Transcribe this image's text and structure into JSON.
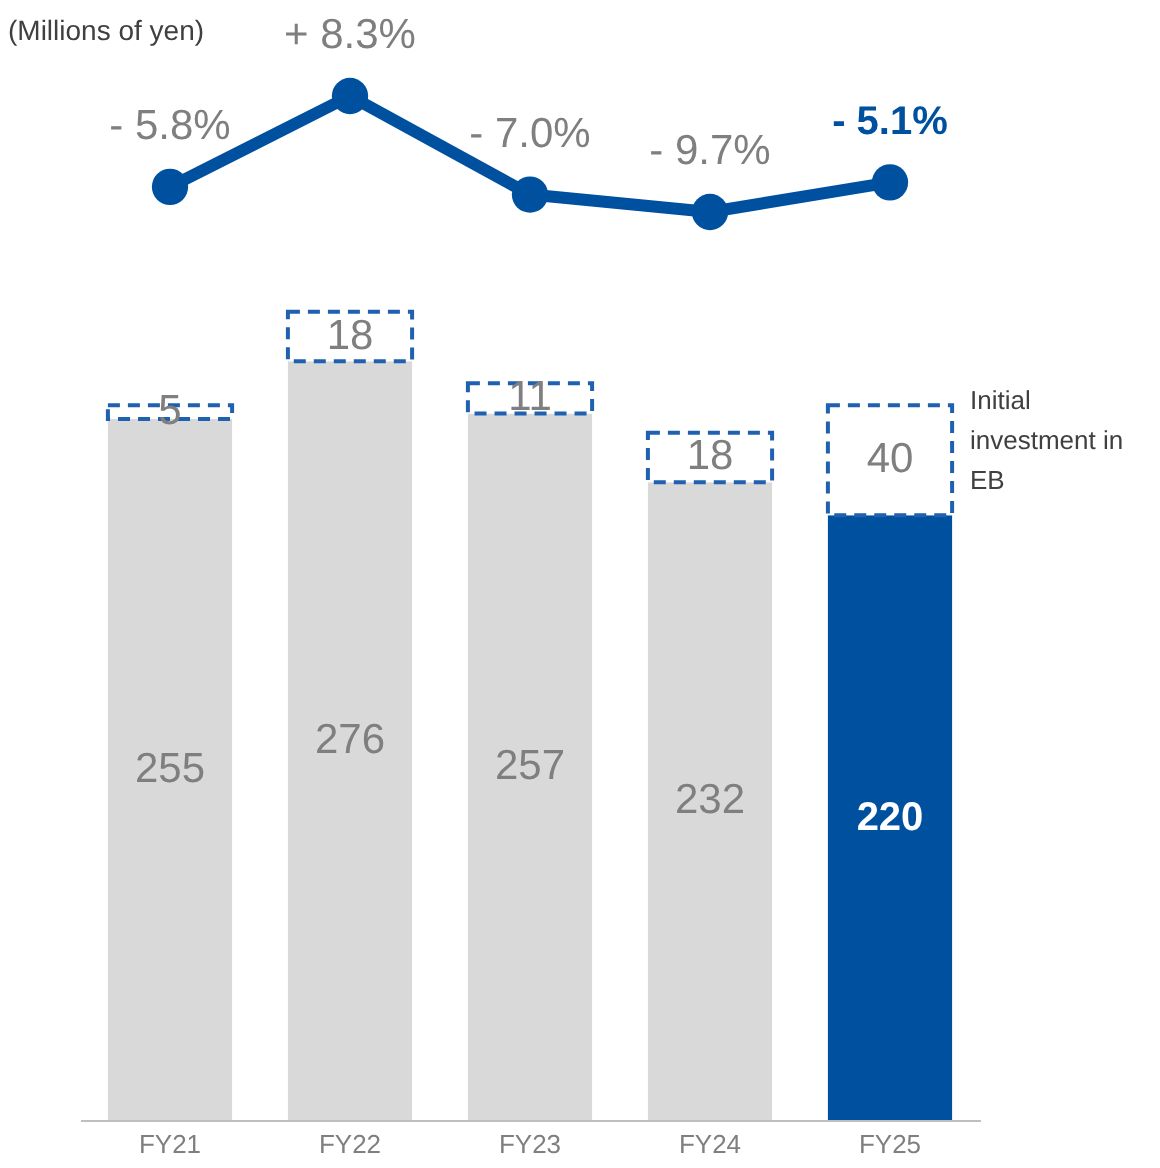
{
  "chart_data": [
    {
      "type": "line",
      "categories": [
        "FY21",
        "FY22",
        "FY23",
        "FY24",
        "FY25"
      ],
      "tick_labels": false,
      "grid": false,
      "annotations": [
        "(Millions of yen)"
      ],
      "series": [
        {
          "color": "#0050a0",
          "marker": "circle",
          "values": [
            -5.8,
            8.3,
            -7.0,
            -9.7,
            -5.1
          ],
          "value_labels": [
            "- 5.8%",
            "+ 8.3%",
            "- 7.0%",
            "- 9.7%",
            "- 5.1%"
          ]
        }
      ]
    },
    {
      "type": "bar",
      "stacked": true,
      "data_labels": true,
      "tick_labels": "x",
      "grid": false,
      "categories": [
        "FY21",
        "FY22",
        "FY23",
        "FY24",
        "FY25"
      ],
      "series": [
        {
          "colors": [
            "#d9d9d9",
            "#d9d9d9",
            "#d9d9d9",
            "#d9d9d9",
            "#0050a0"
          ],
          "values": [
            255,
            276,
            257,
            232,
            220
          ]
        },
        {
          "name": "Initial investment in EB",
          "color": "#2060b0",
          "line_style": "dashed",
          "values": [
            5,
            18,
            11,
            18,
            40
          ]
        }
      ]
    }
  ]
}
